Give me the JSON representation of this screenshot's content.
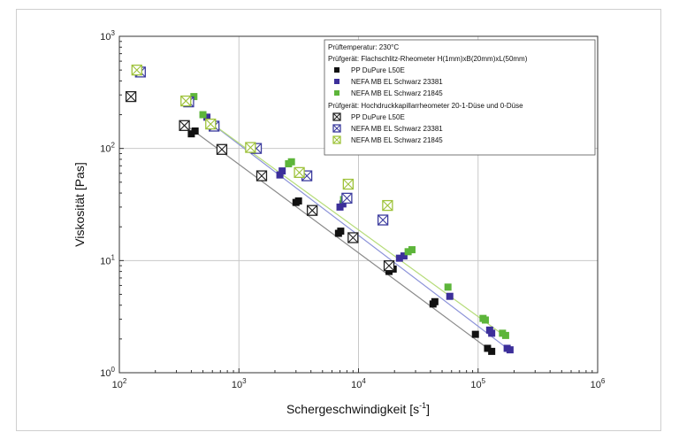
{
  "chart_data": {
    "type": "scatter",
    "x_scale": "log",
    "y_scale": "log",
    "xlim": [
      100,
      1000000
    ],
    "ylim": [
      1,
      1000
    ],
    "xlabel": "Schergeschwindigkeit [s",
    "xlabel_sup": "-1",
    "xlabel_end": "]",
    "ylabel": "Viskosität [Pas]",
    "x_ticks": [
      {
        "value": 100,
        "base": "10",
        "exp": "2"
      },
      {
        "value": 1000,
        "base": "10",
        "exp": "3"
      },
      {
        "value": 10000,
        "base": "10",
        "exp": "4"
      },
      {
        "value": 100000,
        "base": "10",
        "exp": "5"
      },
      {
        "value": 1000000,
        "base": "10",
        "exp": "6"
      }
    ],
    "y_ticks": [
      {
        "value": 1,
        "base": "10",
        "exp": "0"
      },
      {
        "value": 10,
        "base": "10",
        "exp": "1"
      },
      {
        "value": 100,
        "base": "10",
        "exp": "2"
      },
      {
        "value": 1000,
        "base": "10",
        "exp": "3"
      }
    ],
    "grid": true,
    "legend_position": "top-right",
    "legend": {
      "header": "Prüftemperatur: 230°C",
      "group1_title": "Prüfgerät: Flachschlitz-Rheometer H(1mm)xB(20mm)xL(50mm)",
      "group2_title": "Prüfgerät: Hochdruckkapillarrheometer 20-1-Düse und 0-Düse"
    },
    "series": [
      {
        "name": "PP DuPure L50E",
        "group": 1,
        "marker": "square-filled",
        "color": "#111111",
        "x": [
          400,
          430,
          3000,
          3150,
          6800,
          7100,
          18000,
          19500,
          42000,
          43500,
          95000,
          120000,
          130000
        ],
        "y": [
          135,
          143,
          33,
          34,
          17.5,
          18.3,
          8.0,
          8.4,
          4.1,
          4.3,
          2.2,
          1.65,
          1.55
        ]
      },
      {
        "name": "NEFA MB EL Schwarz 23381",
        "group": 1,
        "marker": "square-filled",
        "color": "#3c2f9a",
        "x": [
          540,
          2200,
          2300,
          7000,
          7400,
          22000,
          24000,
          58000,
          125000,
          130000,
          175000,
          185000
        ],
        "y": [
          190,
          58,
          63,
          30,
          32,
          10.5,
          11,
          4.8,
          2.4,
          2.25,
          1.65,
          1.6
        ]
      },
      {
        "name": "NEFA MB EL Schwarz 21845",
        "group": 1,
        "marker": "square-filled",
        "color": "#5db53a",
        "x": [
          420,
          500,
          2600,
          2750,
          7500,
          26000,
          28000,
          56000,
          110000,
          115000,
          160000,
          170000
        ],
        "y": [
          290,
          200,
          73,
          76,
          35,
          12,
          12.5,
          5.8,
          3.05,
          2.95,
          2.25,
          2.15
        ]
      },
      {
        "name": "PP DuPure L50E",
        "group": 2,
        "marker": "square-crossed",
        "color": "#222222",
        "x": [
          125,
          350,
          720,
          1550,
          4100,
          9000,
          18000
        ],
        "y": [
          290,
          160,
          98,
          57,
          28,
          16,
          9
        ]
      },
      {
        "name": "NEFA MB EL Schwarz 23381",
        "group": 2,
        "marker": "square-crossed",
        "color": "#3c3c9e",
        "x": [
          150,
          380,
          620,
          1400,
          3700,
          8000,
          16000
        ],
        "y": [
          480,
          260,
          158,
          100,
          57,
          36,
          23
        ]
      },
      {
        "name": "NEFA MB EL Schwarz 21845",
        "group": 2,
        "marker": "square-crossed",
        "color": "#9ec23a",
        "x": [
          140,
          360,
          580,
          1250,
          3200,
          8200,
          17500
        ],
        "y": [
          500,
          265,
          165,
          102,
          61,
          48,
          31
        ]
      }
    ],
    "fit_lines": [
      {
        "series": "PP DuPure L50E",
        "color": "#8a8a8a",
        "x": [
          350,
          130000
        ],
        "y": [
          165,
          1.55
        ]
      },
      {
        "series": "NEFA MB EL Schwarz 23381",
        "color": "#8c93d9",
        "x": [
          620,
          175000
        ],
        "y": [
          160,
          1.65
        ]
      },
      {
        "series": "NEFA MB EL Schwarz 21845",
        "color": "#b6dc7a",
        "x": [
          580,
          160000
        ],
        "y": [
          170,
          2.2
        ]
      }
    ]
  }
}
